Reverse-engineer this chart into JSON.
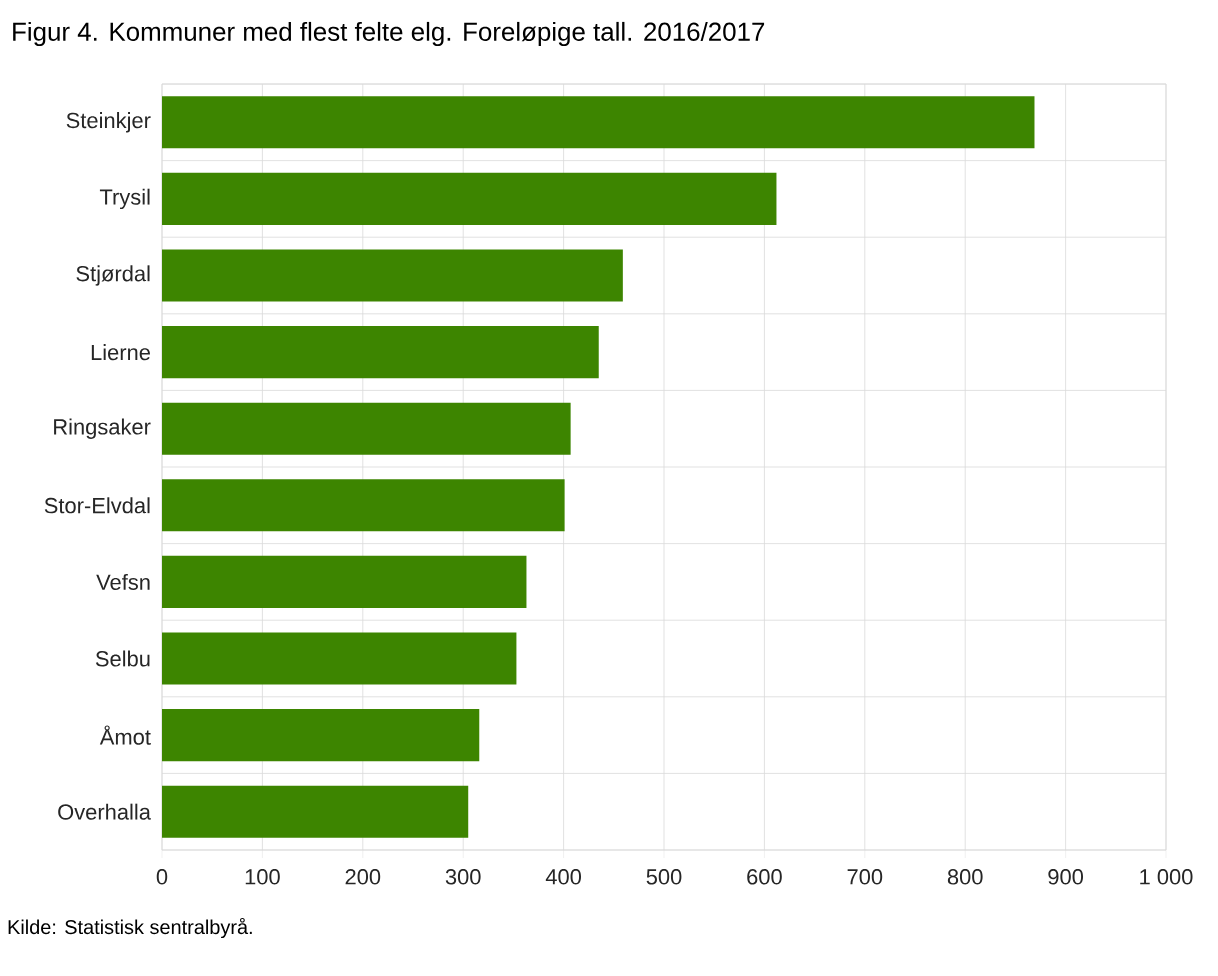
{
  "chart_data": {
    "type": "bar",
    "orientation": "horizontal",
    "title": "Figur 4. Kommuner med flest felte elg. Foreløpige tall. 2016/2017",
    "categories": [
      "Steinkjer",
      "Trysil",
      "Stjørdal",
      "Lierne",
      "Ringsaker",
      "Stor-Elvdal",
      "Vefsn",
      "Selbu",
      "Åmot",
      "Overhalla"
    ],
    "values": [
      869,
      612,
      459,
      435,
      407,
      401,
      363,
      353,
      316,
      305
    ],
    "color": "#3d8500",
    "xlim": [
      0,
      1000
    ],
    "xticks": [
      0,
      100,
      200,
      300,
      400,
      500,
      600,
      700,
      800,
      900,
      {
        "value": 1000,
        "label": "1 000"
      }
    ],
    "grid": true,
    "annotations": [
      "Kilde: Statistisk sentralbyrå."
    ]
  }
}
